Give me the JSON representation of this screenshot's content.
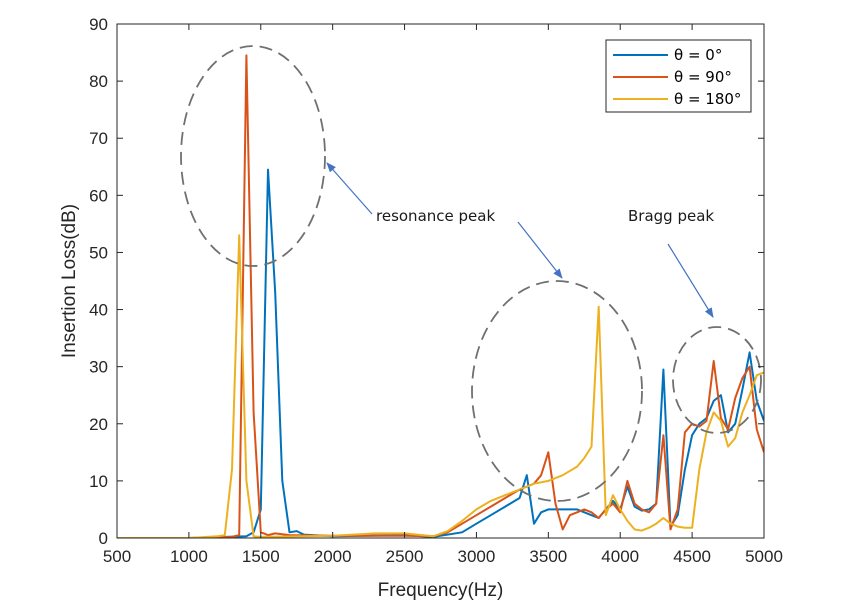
{
  "chart_data": {
    "type": "line",
    "xlabel": "Frequency(Hz)",
    "ylabel": "Insertion Loss(dB)",
    "xlim": [
      500,
      5000
    ],
    "ylim": [
      0,
      90
    ],
    "xticks": [
      "500",
      "1000",
      "1500",
      "2000",
      "2500",
      "3000",
      "3500",
      "4000",
      "4500",
      "5000"
    ],
    "yticks": [
      "0",
      "10",
      "20",
      "30",
      "40",
      "50",
      "60",
      "70",
      "80",
      "90"
    ],
    "grid": false,
    "legend_position": "top-right",
    "series": [
      {
        "name": "θ = 0°",
        "color": "#0072BD",
        "points": [
          [
            500,
            0
          ],
          [
            1000,
            0
          ],
          [
            1400,
            0.3
          ],
          [
            1450,
            1
          ],
          [
            1500,
            5
          ],
          [
            1550,
            64.5
          ],
          [
            1600,
            43
          ],
          [
            1650,
            10
          ],
          [
            1700,
            1
          ],
          [
            1750,
            1.2
          ],
          [
            1800,
            0.6
          ],
          [
            2000,
            0.3
          ],
          [
            2500,
            0.5
          ],
          [
            2700,
            0.2
          ],
          [
            2900,
            1
          ],
          [
            3000,
            2.5
          ],
          [
            3100,
            4
          ],
          [
            3200,
            5.5
          ],
          [
            3300,
            7
          ],
          [
            3350,
            11
          ],
          [
            3400,
            2.5
          ],
          [
            3450,
            4.5
          ],
          [
            3500,
            5
          ],
          [
            3600,
            5
          ],
          [
            3700,
            5
          ],
          [
            3800,
            4
          ],
          [
            3850,
            3.5
          ],
          [
            3900,
            5
          ],
          [
            3950,
            6.5
          ],
          [
            4000,
            5
          ],
          [
            4050,
            9
          ],
          [
            4100,
            5.5
          ],
          [
            4150,
            4.8
          ],
          [
            4200,
            5
          ],
          [
            4250,
            6
          ],
          [
            4300,
            29.5
          ],
          [
            4350,
            2
          ],
          [
            4400,
            4
          ],
          [
            4450,
            12
          ],
          [
            4500,
            18
          ],
          [
            4550,
            20
          ],
          [
            4600,
            21
          ],
          [
            4650,
            24
          ],
          [
            4700,
            25
          ],
          [
            4750,
            18.5
          ],
          [
            4800,
            20
          ],
          [
            4850,
            26
          ],
          [
            4900,
            32.5
          ],
          [
            4950,
            24
          ],
          [
            5000,
            20.5
          ]
        ]
      },
      {
        "name": "θ = 90°",
        "color": "#D95319",
        "points": [
          [
            500,
            0
          ],
          [
            1000,
            0
          ],
          [
            1300,
            0.2
          ],
          [
            1350,
            0.5
          ],
          [
            1400,
            84.5
          ],
          [
            1450,
            22
          ],
          [
            1500,
            1
          ],
          [
            1550,
            0.5
          ],
          [
            1600,
            0.8
          ],
          [
            1700,
            0.5
          ],
          [
            2000,
            0.4
          ],
          [
            2500,
            0.4
          ],
          [
            2700,
            0.3
          ],
          [
            2800,
            1
          ],
          [
            2900,
            2.5
          ],
          [
            3000,
            4
          ],
          [
            3100,
            5.5
          ],
          [
            3200,
            7
          ],
          [
            3300,
            8.5
          ],
          [
            3400,
            9.5
          ],
          [
            3450,
            11
          ],
          [
            3500,
            15
          ],
          [
            3550,
            6
          ],
          [
            3600,
            1.5
          ],
          [
            3650,
            4
          ],
          [
            3700,
            4.5
          ],
          [
            3750,
            5
          ],
          [
            3800,
            4.5
          ],
          [
            3850,
            3.5
          ],
          [
            3900,
            5
          ],
          [
            3950,
            6
          ],
          [
            4000,
            4.5
          ],
          [
            4050,
            10
          ],
          [
            4100,
            6
          ],
          [
            4150,
            5
          ],
          [
            4200,
            4.5
          ],
          [
            4250,
            6
          ],
          [
            4300,
            18
          ],
          [
            4350,
            1.5
          ],
          [
            4400,
            5
          ],
          [
            4450,
            18.5
          ],
          [
            4500,
            20
          ],
          [
            4550,
            19.5
          ],
          [
            4600,
            20.5
          ],
          [
            4650,
            31
          ],
          [
            4700,
            21
          ],
          [
            4750,
            19
          ],
          [
            4800,
            24.5
          ],
          [
            4850,
            28
          ],
          [
            4900,
            30
          ],
          [
            4950,
            19
          ],
          [
            5000,
            15
          ]
        ]
      },
      {
        "name": "θ = 180°",
        "color": "#EDB120",
        "points": [
          [
            500,
            0
          ],
          [
            1000,
            0
          ],
          [
            1200,
            0.3
          ],
          [
            1250,
            0.5
          ],
          [
            1300,
            12
          ],
          [
            1350,
            53
          ],
          [
            1400,
            10
          ],
          [
            1450,
            0.3
          ],
          [
            1500,
            0.2
          ],
          [
            2000,
            0.4
          ],
          [
            2300,
            0.8
          ],
          [
            2500,
            0.8
          ],
          [
            2700,
            0.3
          ],
          [
            2800,
            1.2
          ],
          [
            2900,
            3
          ],
          [
            3000,
            5
          ],
          [
            3100,
            6.5
          ],
          [
            3200,
            7.5
          ],
          [
            3300,
            8.5
          ],
          [
            3400,
            9.5
          ],
          [
            3500,
            10
          ],
          [
            3600,
            11
          ],
          [
            3700,
            12.5
          ],
          [
            3750,
            14
          ],
          [
            3800,
            16
          ],
          [
            3850,
            40.5
          ],
          [
            3900,
            4
          ],
          [
            3950,
            7.5
          ],
          [
            4000,
            5
          ],
          [
            4050,
            3
          ],
          [
            4100,
            1.5
          ],
          [
            4150,
            1.3
          ],
          [
            4200,
            1.8
          ],
          [
            4250,
            2.5
          ],
          [
            4300,
            3.5
          ],
          [
            4350,
            2.5
          ],
          [
            4400,
            2
          ],
          [
            4450,
            1.8
          ],
          [
            4500,
            1.8
          ],
          [
            4550,
            12
          ],
          [
            4600,
            18.5
          ],
          [
            4650,
            22
          ],
          [
            4700,
            20.5
          ],
          [
            4750,
            16
          ],
          [
            4800,
            17.5
          ],
          [
            4850,
            22
          ],
          [
            4900,
            25
          ],
          [
            4950,
            28.5
          ],
          [
            5000,
            29
          ]
        ]
      }
    ],
    "annotations": [
      {
        "text": "resonance peak"
      },
      {
        "text": "Bragg peak"
      }
    ]
  }
}
